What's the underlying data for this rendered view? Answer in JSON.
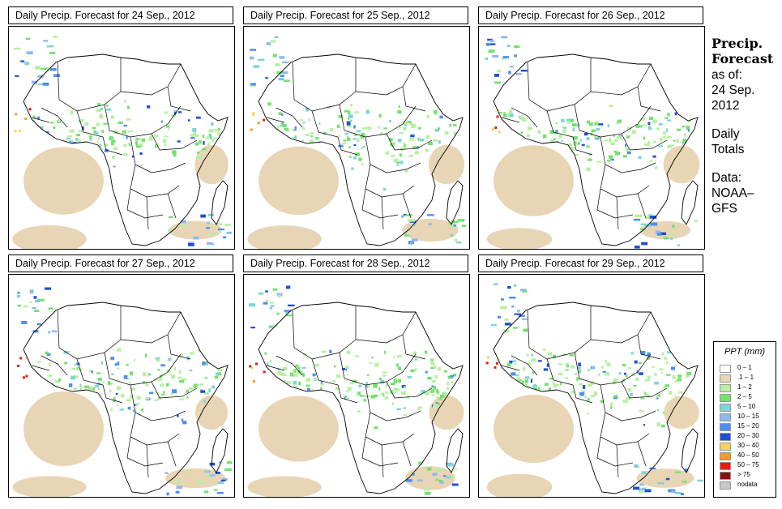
{
  "panels": [
    {
      "title": "Daily Precip. Forecast for  24 Sep., 2012",
      "seed": 11
    },
    {
      "title": "Daily Precip. Forecast for  25 Sep., 2012",
      "seed": 23
    },
    {
      "title": "Daily Precip. Forecast for  26 Sep., 2012",
      "seed": 37
    },
    {
      "title": "Daily Precip. Forecast for  27 Sep., 2012",
      "seed": 41
    },
    {
      "title": "Daily Precip. Forecast for  28 Sep., 2012",
      "seed": 53
    },
    {
      "title": "Daily Precip. Forecast for  29 Sep., 2012",
      "seed": 67
    }
  ],
  "sidebar": {
    "title_line1": "Precip.",
    "title_line2": "Forecast",
    "as_of": "as of:",
    "date_line1": "24 Sep.",
    "date_line2": "2012",
    "totals_line1": "Daily",
    "totals_line2": "Totals",
    "data_line1": "Data:",
    "data_line2": "NOAA–",
    "data_line3": "GFS"
  },
  "legend": {
    "title": "PPT (mm)",
    "items": [
      {
        "label": "0 – 1",
        "color": "#ffffff"
      },
      {
        "label": ".1 – 1",
        "color": "#e8d5b5"
      },
      {
        "label": "1 – 2",
        "color": "#b6f0a0"
      },
      {
        "label": "2 – 5",
        "color": "#74e070"
      },
      {
        "label": "5 – 10",
        "color": "#7fd4d8"
      },
      {
        "label": "10 – 15",
        "color": "#8cb8f0"
      },
      {
        "label": "15 – 20",
        "color": "#4e8ef0"
      },
      {
        "label": "20 – 30",
        "color": "#1f4fd8"
      },
      {
        "label": "30 – 40",
        "color": "#f5d060"
      },
      {
        "label": "40 – 50",
        "color": "#f59a20"
      },
      {
        "label": "50 – 75",
        "color": "#e02010"
      },
      {
        "label": "> 75",
        "color": "#8a1010"
      },
      {
        "label": "nodata",
        "color": "#c8c8c8"
      }
    ]
  }
}
